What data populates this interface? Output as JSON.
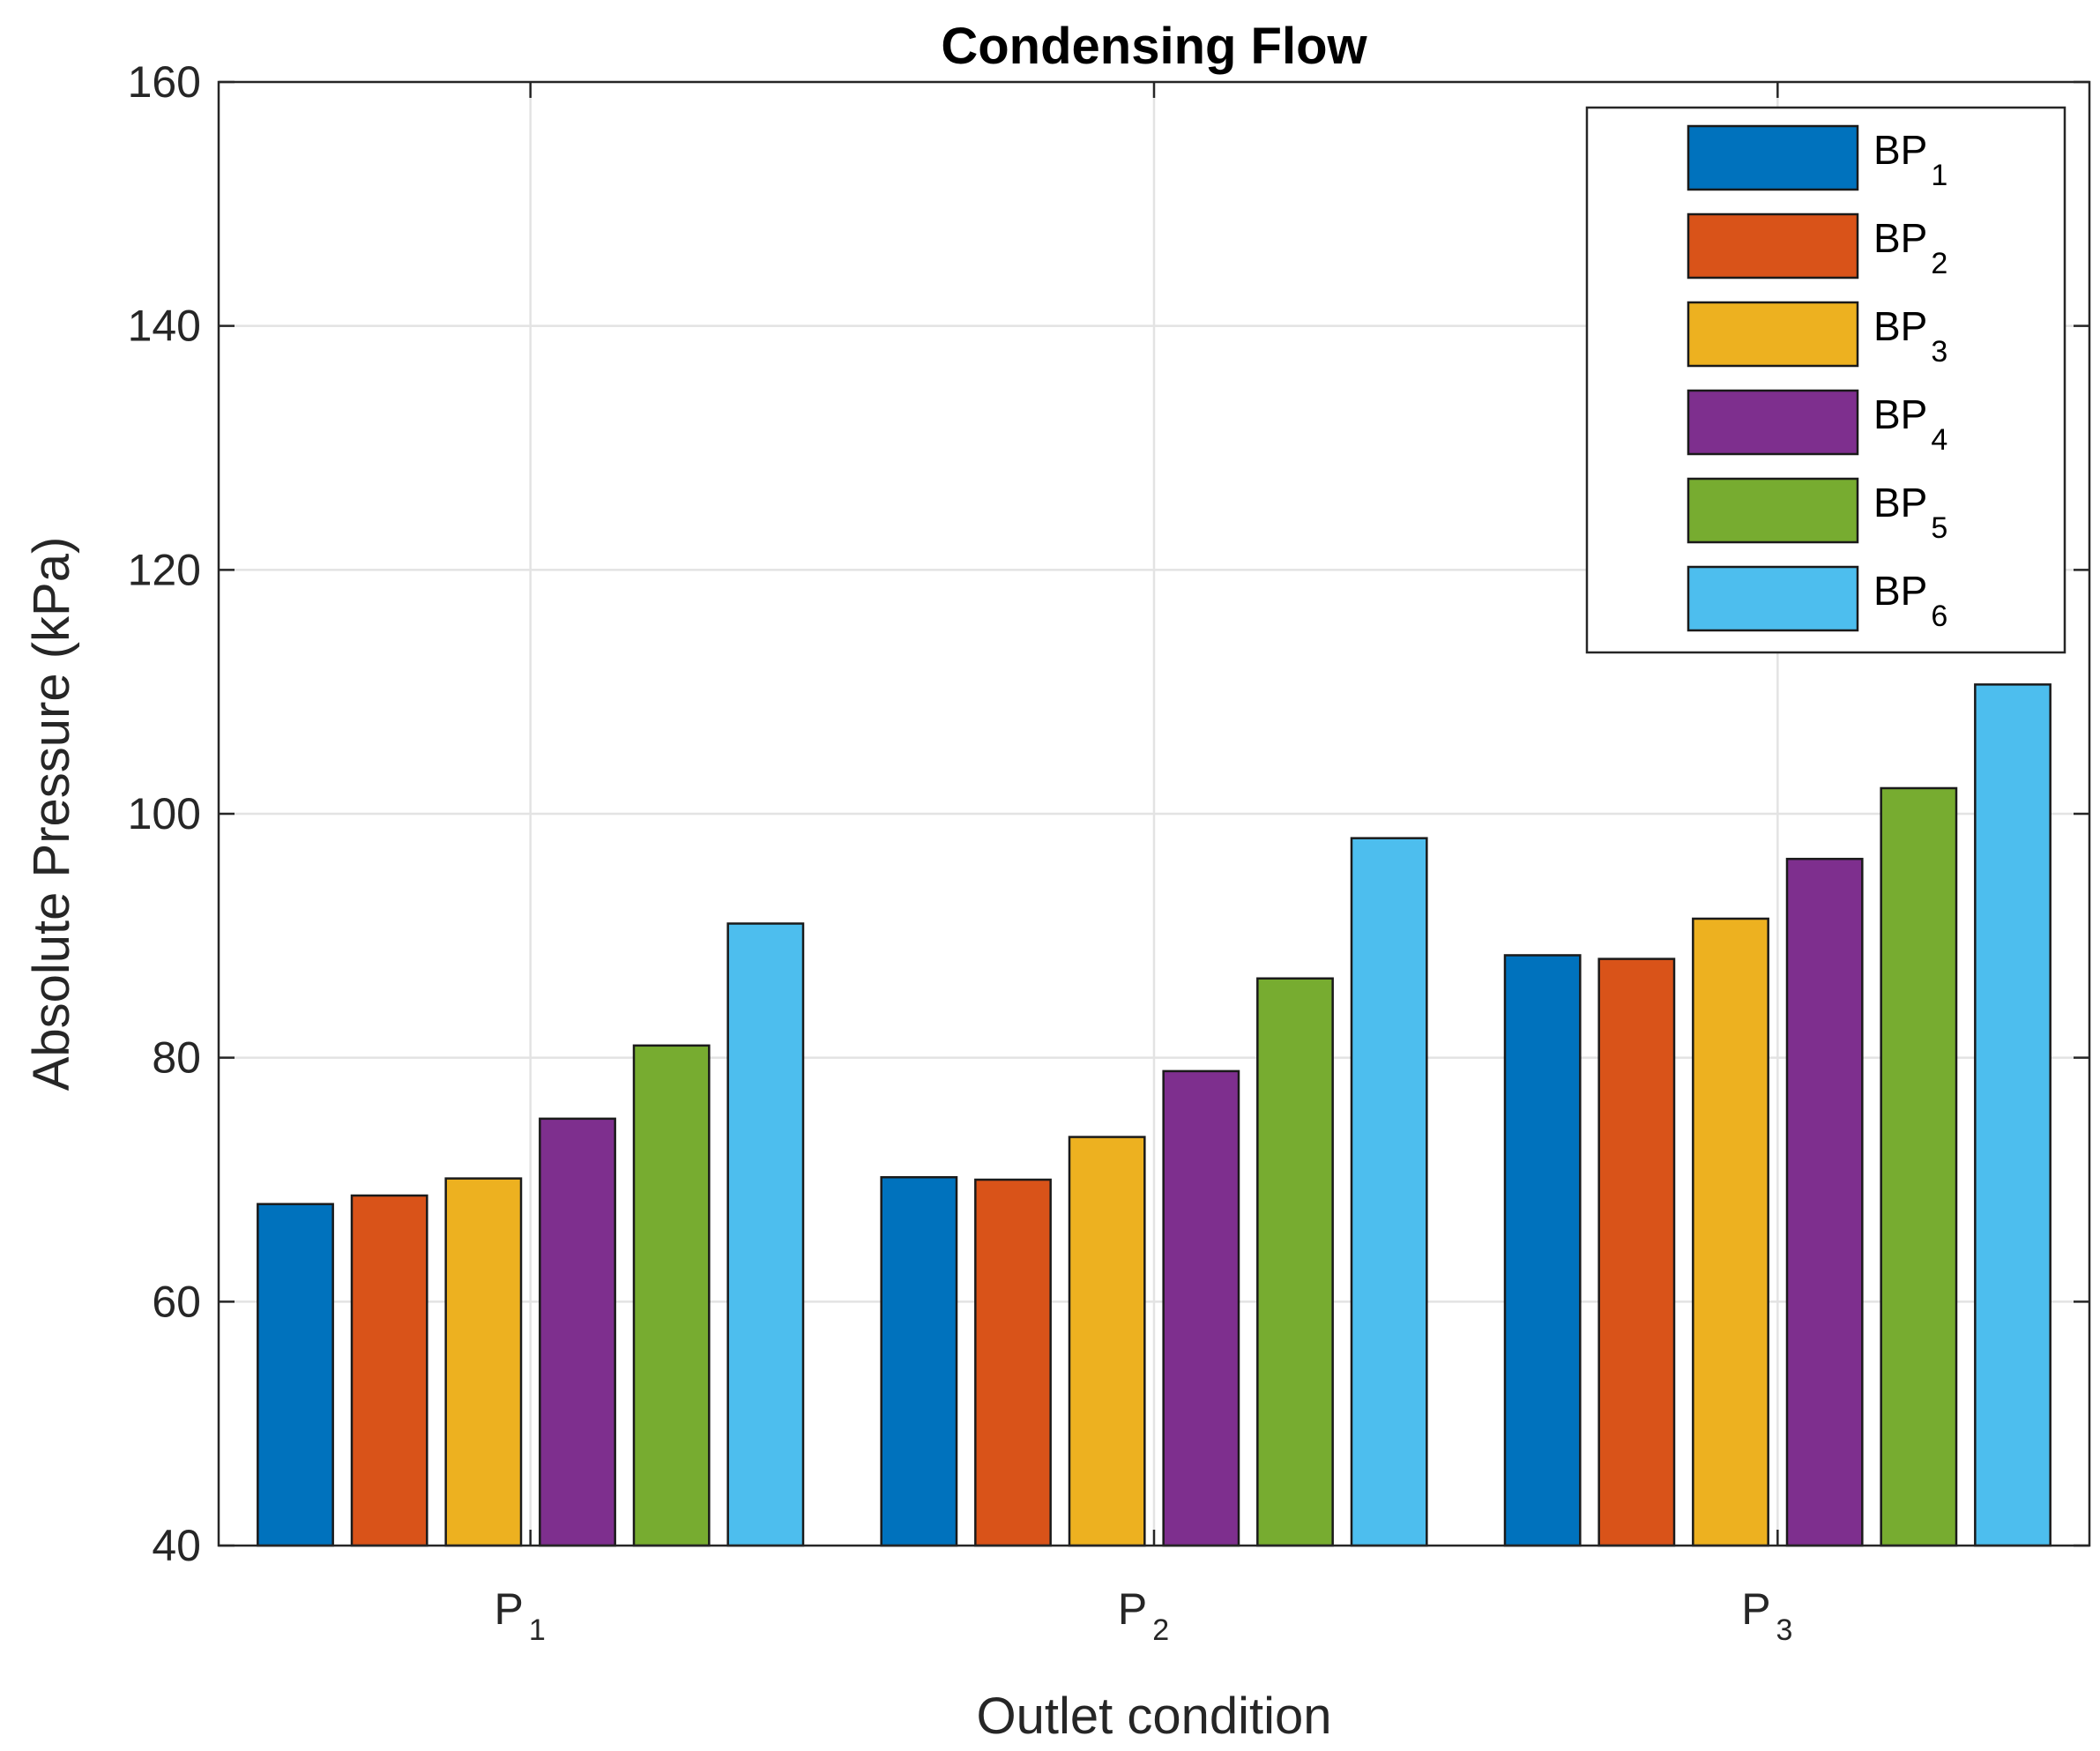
{
  "chart_data": {
    "type": "bar",
    "title": "Condensing Flow",
    "xlabel": "Outlet condition",
    "ylabel": "Absolute Pressure (kPa)",
    "ylim": [
      40,
      160
    ],
    "yticks": [
      40,
      60,
      80,
      100,
      120,
      140,
      160
    ],
    "grid": true,
    "legend_position": "top-right",
    "categories": [
      {
        "base": "P",
        "sub": "1"
      },
      {
        "base": "P",
        "sub": "2"
      },
      {
        "base": "P",
        "sub": "3"
      }
    ],
    "series": [
      {
        "base": "BP",
        "sub": "1",
        "color": "#0072BD",
        "values": [
          68.0,
          70.2,
          88.4
        ]
      },
      {
        "base": "BP",
        "sub": "2",
        "color": "#D95319",
        "values": [
          68.7,
          70.0,
          88.1
        ]
      },
      {
        "base": "BP",
        "sub": "3",
        "color": "#EDB120",
        "values": [
          70.1,
          73.5,
          91.4
        ]
      },
      {
        "base": "BP",
        "sub": "4",
        "color": "#7E2F8E",
        "values": [
          75.0,
          78.9,
          96.3
        ]
      },
      {
        "base": "BP",
        "sub": "5",
        "color": "#77AC30",
        "values": [
          81.0,
          86.5,
          102.1
        ]
      },
      {
        "base": "BP",
        "sub": "6",
        "color": "#4DBEEE",
        "values": [
          91.0,
          98.0,
          110.6
        ]
      }
    ]
  }
}
